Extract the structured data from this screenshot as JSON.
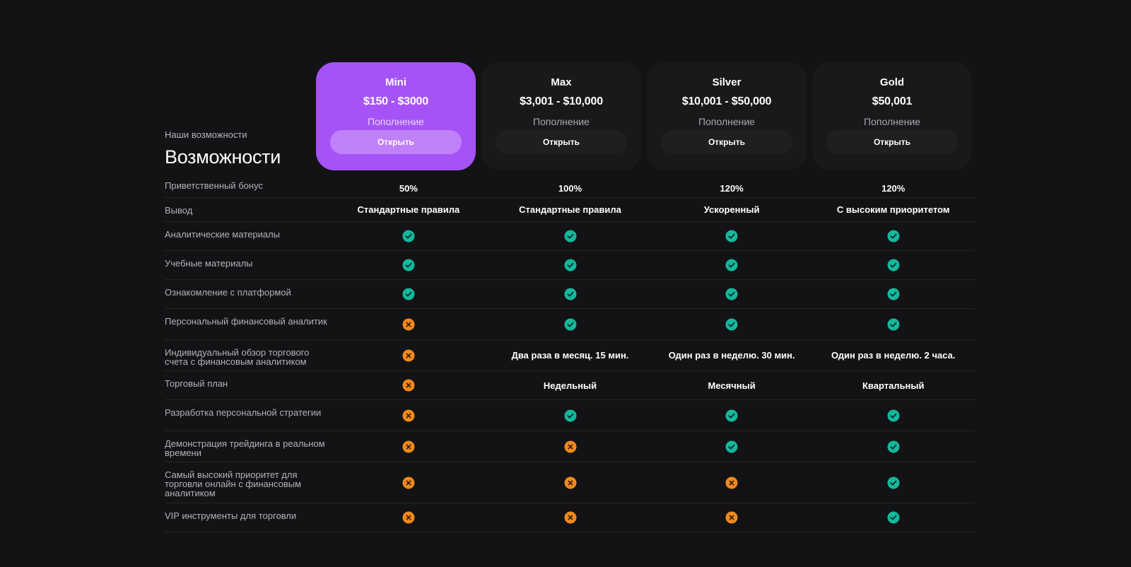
{
  "header": {
    "subtitle": "Наши возможности",
    "title": "Возможности"
  },
  "plans": [
    {
      "name": "Mini",
      "price": "$150 - $3000",
      "deposit": "Пополнение",
      "button": "Открыть"
    },
    {
      "name": "Max",
      "price": "$3,001 - $10,000",
      "deposit": "Пополнение",
      "button": "Открыть"
    },
    {
      "name": "Silver",
      "price": "$10,001 - $50,000",
      "deposit": "Пополнение",
      "button": "Открыть"
    },
    {
      "name": "Gold",
      "price": "$50,001",
      "deposit": "Пополнение",
      "button": "Открыть"
    }
  ],
  "colors": {
    "accent": "#a553f6",
    "check": "#14b89c",
    "cross": "#f08a1c"
  },
  "rows": [
    {
      "label": "Приветственный бонус",
      "values": [
        "50%",
        "100%",
        "120%",
        "120%"
      ]
    },
    {
      "label": "Вывод",
      "values": [
        "Стандартные правила",
        "Стандартные правила",
        "Ускоренный",
        "С высоким приоритетом"
      ]
    },
    {
      "label": "Аналитические материалы",
      "values": [
        "check",
        "check",
        "check",
        "check"
      ]
    },
    {
      "label": "Учебные материалы",
      "values": [
        "check",
        "check",
        "check",
        "check"
      ]
    },
    {
      "label": "Ознакомление с платформой",
      "values": [
        "check",
        "check",
        "check",
        "check"
      ]
    },
    {
      "label": "Персональный финансовый аналитик",
      "values": [
        "cross",
        "check",
        "check",
        "check"
      ]
    },
    {
      "label": "Индивидуальный обзор торгового счета с финансовым аналитиком",
      "values": [
        "cross",
        "Два раза в месяц. 15 мин.",
        "Один раз в неделю. 30 мин.",
        "Один раз в неделю. 2 часа."
      ]
    },
    {
      "label": "Торговый план",
      "values": [
        "cross",
        "Недельный",
        "Месячный",
        "Квартальный"
      ]
    },
    {
      "label": "Разработка персональной стратегии",
      "values": [
        "cross",
        "check",
        "check",
        "check"
      ]
    },
    {
      "label": "Демонстрация трейдинга в реальном времени",
      "values": [
        "cross",
        "cross",
        "check",
        "check"
      ]
    },
    {
      "label": "Самый высокий приоритет для торговли онлайн с финансовым аналитиком",
      "values": [
        "cross",
        "cross",
        "cross",
        "check"
      ]
    },
    {
      "label": "VIP инструменты для торговли",
      "values": [
        "cross",
        "cross",
        "cross",
        "check"
      ]
    }
  ]
}
